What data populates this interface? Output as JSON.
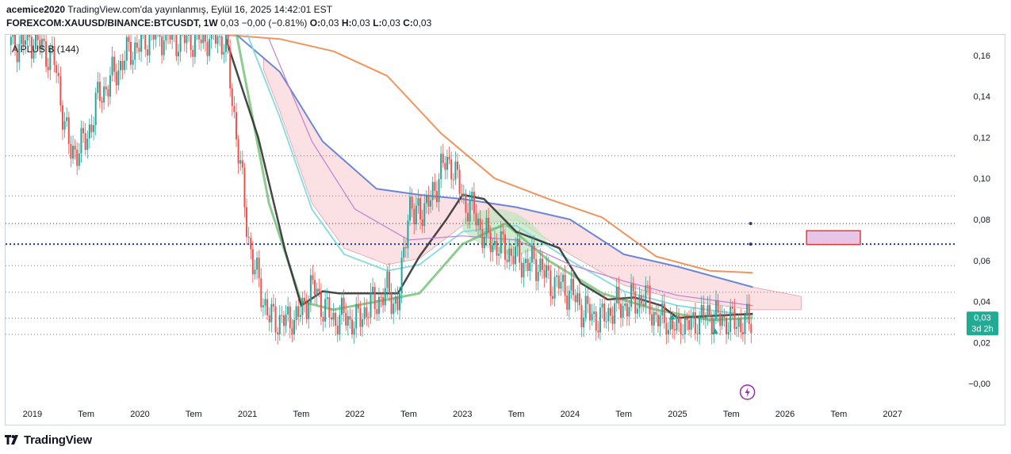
{
  "header": {
    "author": "acemice2020",
    "published_text": "TradingView.com'da yayınlanmış, Eylül 16, 2025 14:42:01 EST",
    "symbol": "FOREXCOM:XAUUSD/BINANCE:BTCUSDT, 1W",
    "change_text": "0,03 −0,00 (−0.81%)",
    "o_label": "O:",
    "o_value": "0,03",
    "h_label": "H:",
    "h_value": "0,03",
    "l_label": "L:",
    "l_value": "0,03",
    "c_label": "C:",
    "c_value": "0,03"
  },
  "footer": {
    "brand": "TradingView"
  },
  "colors": {
    "up": "#26a69a",
    "down": "#ef5350",
    "orange": "#f08a4b",
    "blue": "#5b7fd6",
    "cyan": "#7fd8e0",
    "green": "#66bb6a",
    "black": "#333333",
    "purple": "#c27ed4",
    "cloud_pink": "#f8c8cc",
    "cloud_green": "#bde5be",
    "price_tag": "#22ab94",
    "level_green": "#43a047",
    "level_blue": "#1a3d8f",
    "box_fill": "#e8c4e6",
    "box_border": "#e53935"
  },
  "chart_data": {
    "type": "line",
    "title": "FOREXCOM:XAUUSD/BINANCE:BTCUSDT, 1W",
    "indicator_label": "A PLUS B (144)",
    "xlabel": "",
    "ylabel": "",
    "ylim": [
      -0.01,
      0.17
    ],
    "x_range": [
      2018.75,
      2027.6
    ],
    "y_ticks": [
      {
        "value": 0.16,
        "label": "0,16"
      },
      {
        "value": 0.14,
        "label": "0,14"
      },
      {
        "value": 0.12,
        "label": "0,12"
      },
      {
        "value": 0.1,
        "label": "0,10"
      },
      {
        "value": 0.08,
        "label": "0,08"
      },
      {
        "value": 0.06,
        "label": "0,06"
      },
      {
        "value": 0.04,
        "label": "0,04"
      },
      {
        "value": 0.02,
        "label": "0,02"
      },
      {
        "value": 0.0,
        "label": "−0,00"
      }
    ],
    "x_ticks": [
      {
        "x": 2019.0,
        "label": "2019"
      },
      {
        "x": 2019.5,
        "label": "Tem"
      },
      {
        "x": 2020.0,
        "label": "2020"
      },
      {
        "x": 2020.5,
        "label": "Tem"
      },
      {
        "x": 2021.0,
        "label": "2021"
      },
      {
        "x": 2021.5,
        "label": "Tem"
      },
      {
        "x": 2022.0,
        "label": "2022"
      },
      {
        "x": 2022.5,
        "label": "Tem"
      },
      {
        "x": 2023.0,
        "label": "2023"
      },
      {
        "x": 2023.5,
        "label": "Tem"
      },
      {
        "x": 2024.0,
        "label": "2024"
      },
      {
        "x": 2024.5,
        "label": "Tem"
      },
      {
        "x": 2025.0,
        "label": "2025"
      },
      {
        "x": 2025.5,
        "label": "Tem"
      },
      {
        "x": 2026.0,
        "label": "2026"
      },
      {
        "x": 2026.5,
        "label": "Tem"
      },
      {
        "x": 2027.0,
        "label": "2027"
      }
    ],
    "price_series": {
      "name": "XAUUSD/BTCUSDT weekly close (approx.)",
      "x": [
        2018.8,
        2019.0,
        2019.2,
        2019.35,
        2019.5,
        2019.6,
        2019.75,
        2019.9,
        2020.0,
        2020.1,
        2020.2,
        2020.35,
        2020.5,
        2020.6,
        2020.7,
        2020.8,
        2020.9,
        2021.0,
        2021.05,
        2021.1,
        2021.2,
        2021.3,
        2021.4,
        2021.5,
        2021.6,
        2021.7,
        2021.8,
        2021.9,
        2022.0,
        2022.1,
        2022.2,
        2022.3,
        2022.4,
        2022.45,
        2022.5,
        2022.55,
        2022.6,
        2022.7,
        2022.8,
        2022.9,
        2023.0,
        2023.1,
        2023.2,
        2023.3,
        2023.4,
        2023.5,
        2023.6,
        2023.7,
        2023.8,
        2023.9,
        2024.0,
        2024.1,
        2024.2,
        2024.3,
        2024.4,
        2024.5,
        2024.6,
        2024.7,
        2024.8,
        2024.9,
        2025.0,
        2025.1,
        2025.2,
        2025.3,
        2025.4,
        2025.5,
        2025.6,
        2025.7
      ],
      "close": [
        0.165,
        0.168,
        0.158,
        0.112,
        0.118,
        0.138,
        0.15,
        0.162,
        0.165,
        0.17,
        0.17,
        0.168,
        0.168,
        0.168,
        0.17,
        0.165,
        0.12,
        0.075,
        0.058,
        0.05,
        0.032,
        0.031,
        0.03,
        0.034,
        0.048,
        0.038,
        0.031,
        0.033,
        0.029,
        0.036,
        0.04,
        0.045,
        0.038,
        0.06,
        0.09,
        0.08,
        0.085,
        0.088,
        0.105,
        0.108,
        0.09,
        0.084,
        0.072,
        0.068,
        0.065,
        0.062,
        0.058,
        0.059,
        0.05,
        0.048,
        0.045,
        0.037,
        0.033,
        0.031,
        0.037,
        0.038,
        0.04,
        0.042,
        0.032,
        0.029,
        0.026,
        0.028,
        0.031,
        0.034,
        0.031,
        0.03,
        0.029,
        0.03
      ]
    },
    "series": [
      {
        "name": "orange MA",
        "x": [
          2020.8,
          2021.3,
          2021.8,
          2022.3,
          2022.8,
          2023.3,
          2023.8,
          2024.3,
          2024.8,
          2025.3,
          2025.7
        ],
        "values": [
          0.17,
          0.168,
          0.162,
          0.15,
          0.122,
          0.1,
          0.09,
          0.081,
          0.062,
          0.055,
          0.054
        ]
      },
      {
        "name": "blue MA",
        "x": [
          2020.9,
          2021.3,
          2021.7,
          2022.2,
          2022.6,
          2023.0,
          2023.5,
          2024.0,
          2024.5,
          2025.0,
          2025.7
        ],
        "values": [
          0.17,
          0.152,
          0.118,
          0.095,
          0.092,
          0.09,
          0.086,
          0.08,
          0.063,
          0.057,
          0.047
        ]
      },
      {
        "name": "cyan MA",
        "x": [
          2021.0,
          2021.3,
          2021.6,
          2021.9,
          2022.3,
          2022.6,
          2023.0,
          2023.5,
          2024.0,
          2024.5,
          2025.0,
          2025.7
        ],
        "values": [
          0.17,
          0.13,
          0.085,
          0.063,
          0.055,
          0.058,
          0.074,
          0.077,
          0.06,
          0.045,
          0.038,
          0.033
        ]
      },
      {
        "name": "green MA",
        "x": [
          2020.9,
          2021.2,
          2021.5,
          2021.8,
          2022.2,
          2022.6,
          2023.0,
          2023.4,
          2023.8,
          2024.3,
          2024.8,
          2025.3,
          2025.7
        ],
        "values": [
          0.17,
          0.088,
          0.04,
          0.036,
          0.04,
          0.044,
          0.068,
          0.078,
          0.06,
          0.044,
          0.036,
          0.031,
          0.032
        ]
      },
      {
        "name": "black MA",
        "x": [
          2020.8,
          2021.1,
          2021.35,
          2021.5,
          2021.7,
          2021.85,
          2022.05,
          2022.4,
          2022.6,
          2022.85,
          2023.0,
          2023.2,
          2023.5,
          2023.9,
          2024.1,
          2024.35,
          2024.6,
          2024.85,
          2025.0,
          2025.3,
          2025.7
        ],
        "values": [
          0.168,
          0.12,
          0.065,
          0.038,
          0.045,
          0.044,
          0.044,
          0.044,
          0.062,
          0.08,
          0.092,
          0.09,
          0.074,
          0.066,
          0.049,
          0.041,
          0.042,
          0.038,
          0.032,
          0.033,
          0.034
        ]
      }
    ],
    "horizontal_levels": [
      {
        "value": 0.111,
        "color": "green",
        "style": "dotted"
      },
      {
        "value": 0.0915,
        "color": "green",
        "style": "dotted"
      },
      {
        "value": 0.078,
        "color": "blue",
        "style": "dotted"
      },
      {
        "value": 0.068,
        "color": "blue",
        "style": "dotted-bold"
      },
      {
        "value": 0.0575,
        "color": "green",
        "style": "dotted"
      },
      {
        "value": 0.0445,
        "color": "green",
        "style": "dotted"
      },
      {
        "value": 0.0318,
        "color": "green",
        "style": "dotted"
      },
      {
        "value": 0.024,
        "color": "green",
        "style": "dotted"
      }
    ],
    "target_box": {
      "x_start": 2026.2,
      "x_end": 2026.7,
      "y_low": 0.0678,
      "y_high": 0.0745
    },
    "last_price": {
      "value": 0.032,
      "label": "0,03",
      "countdown": "3d 2h"
    }
  }
}
